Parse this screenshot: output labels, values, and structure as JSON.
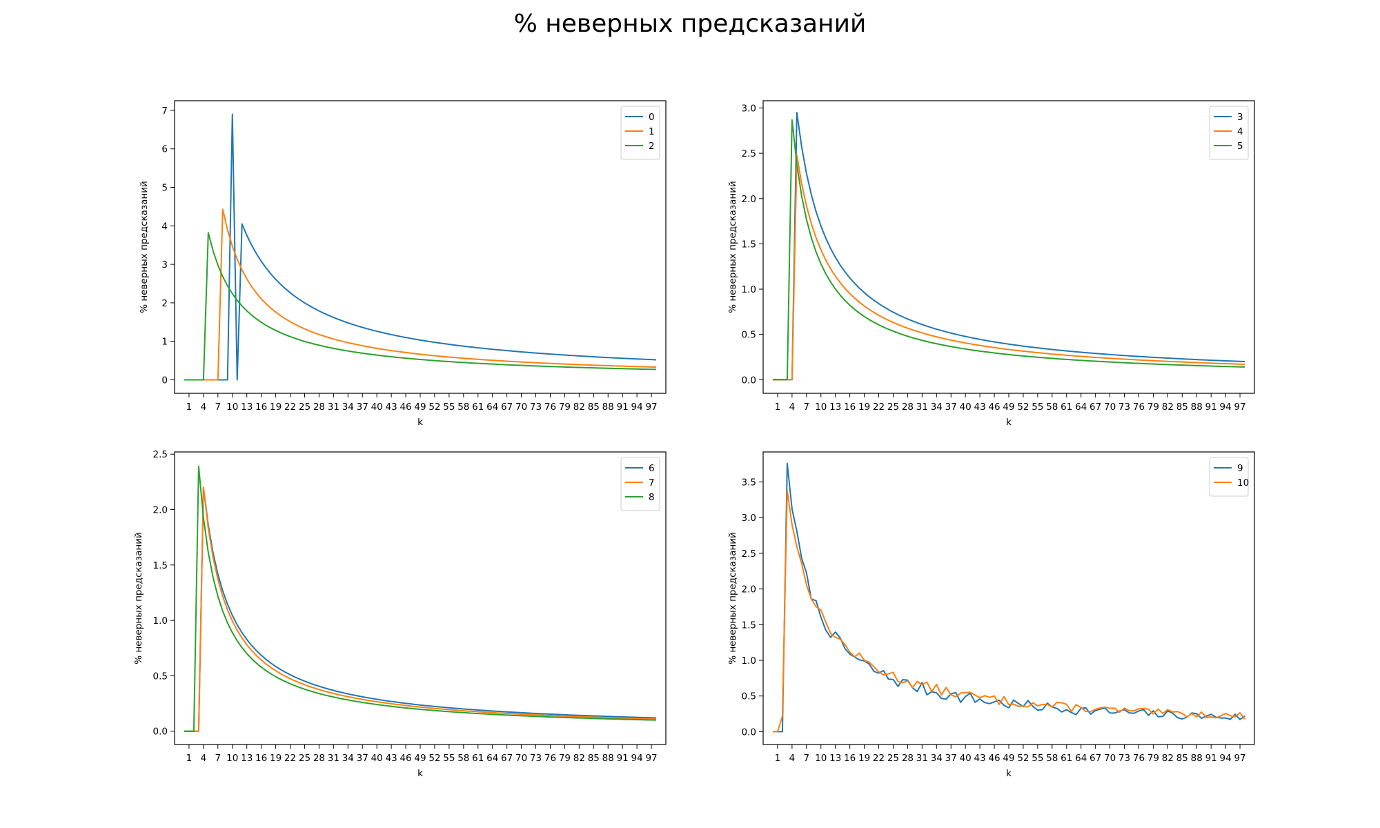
{
  "figure": {
    "suptitle": "% неверных предсказаний"
  },
  "chart_data": [
    {
      "type": "line",
      "xlabel": "k",
      "ylabel": "% неверных предсказаний",
      "xlim": [
        -2,
        100
      ],
      "ylim": [
        -0.35,
        7.25
      ],
      "yticks": [
        0,
        1,
        2,
        3,
        4,
        5,
        6,
        7
      ],
      "ytick_labels": [
        "0",
        "1",
        "2",
        "3",
        "4",
        "5",
        "6",
        "7"
      ],
      "xticks": [
        1,
        4,
        7,
        10,
        13,
        16,
        19,
        22,
        25,
        28,
        31,
        34,
        37,
        40,
        43,
        46,
        49,
        52,
        55,
        58,
        61,
        64,
        67,
        70,
        73,
        76,
        79,
        82,
        85,
        88,
        91,
        94,
        97
      ],
      "legend_position": "upper-right",
      "grid": false,
      "series": [
        {
          "name": "0",
          "color": "#1f77b4",
          "model": {
            "zeros_until": 9,
            "peak_x": 10,
            "peak_y": 6.9,
            "drop_x": 11,
            "drop_y": 0,
            "start": 12,
            "start_y": 4.05,
            "end_y": 0.52
          }
        },
        {
          "name": "1",
          "color": "#ff7f0e",
          "model": {
            "zeros_until": 7,
            "peak_x": 8,
            "peak_y": 4.43,
            "end_y": 0.33
          }
        },
        {
          "name": "2",
          "color": "#2ca02c",
          "model": {
            "zeros_until": 4,
            "peak_x": 5,
            "peak_y": 3.82,
            "end_y": 0.27
          }
        }
      ]
    },
    {
      "type": "line",
      "xlabel": "k",
      "ylabel": "% неверных предсказаний",
      "xlim": [
        -2,
        100
      ],
      "ylim": [
        -0.15,
        3.08
      ],
      "yticks": [
        0,
        0.5,
        1.0,
        1.5,
        2.0,
        2.5,
        3.0
      ],
      "ytick_labels": [
        "0.0",
        "0.5",
        "1.0",
        "1.5",
        "2.0",
        "2.5",
        "3.0"
      ],
      "xticks": [
        1,
        4,
        7,
        10,
        13,
        16,
        19,
        22,
        25,
        28,
        31,
        34,
        37,
        40,
        43,
        46,
        49,
        52,
        55,
        58,
        61,
        64,
        67,
        70,
        73,
        76,
        79,
        82,
        85,
        88,
        91,
        94,
        97
      ],
      "legend_position": "upper-right",
      "grid": false,
      "series": [
        {
          "name": "3",
          "color": "#1f77b4",
          "model": {
            "zeros_until": 4,
            "peak_x": 5,
            "peak_y": 2.95,
            "end_y": 0.2
          }
        },
        {
          "name": "4",
          "color": "#ff7f0e",
          "model": {
            "zeros_until": 4,
            "peak_x": 5,
            "peak_y": 2.48,
            "end_y": 0.17
          }
        },
        {
          "name": "5",
          "color": "#2ca02c",
          "model": {
            "zeros_until": 3,
            "peak_x": 4,
            "peak_y": 2.87,
            "end_y": 0.14
          }
        }
      ]
    },
    {
      "type": "line",
      "xlabel": "k",
      "ylabel": "% неверных предсказаний",
      "xlim": [
        -2,
        100
      ],
      "ylim": [
        -0.12,
        2.52
      ],
      "yticks": [
        0,
        0.5,
        1.0,
        1.5,
        2.0,
        2.5
      ],
      "ytick_labels": [
        "0.0",
        "0.5",
        "1.0",
        "1.5",
        "2.0",
        "2.5"
      ],
      "xticks": [
        1,
        4,
        7,
        10,
        13,
        16,
        19,
        22,
        25,
        28,
        31,
        34,
        37,
        40,
        43,
        46,
        49,
        52,
        55,
        58,
        61,
        64,
        67,
        70,
        73,
        76,
        79,
        82,
        85,
        88,
        91,
        94,
        97
      ],
      "legend_position": "upper-right",
      "grid": false,
      "series": [
        {
          "name": "6",
          "color": "#1f77b4",
          "model": {
            "zeros_until": 3,
            "peak_x": 4,
            "peak_y": 2.2,
            "end_y": 0.12
          }
        },
        {
          "name": "7",
          "color": "#ff7f0e",
          "model": {
            "zeros_until": 3,
            "peak_x": 4,
            "peak_y": 2.2,
            "end_y": 0.11
          }
        },
        {
          "name": "8",
          "color": "#2ca02c",
          "model": {
            "zeros_until": 2,
            "peak_x": 3,
            "peak_y": 2.39,
            "end_y": 0.1
          }
        }
      ]
    },
    {
      "type": "line",
      "xlabel": "k",
      "ylabel": "% неверных предсказаний",
      "xlim": [
        -2,
        100
      ],
      "ylim": [
        -0.18,
        3.92
      ],
      "yticks": [
        0,
        0.5,
        1.0,
        1.5,
        2.0,
        2.5,
        3.0,
        3.5
      ],
      "ytick_labels": [
        "0.0",
        "0.5",
        "1.0",
        "1.5",
        "2.0",
        "2.5",
        "3.0",
        "3.5"
      ],
      "xticks": [
        1,
        4,
        7,
        10,
        13,
        16,
        19,
        22,
        25,
        28,
        31,
        34,
        37,
        40,
        43,
        46,
        49,
        52,
        55,
        58,
        61,
        64,
        67,
        70,
        73,
        76,
        79,
        82,
        85,
        88,
        91,
        94,
        97
      ],
      "legend_position": "upper-right",
      "grid": false,
      "series": [
        {
          "name": "9",
          "color": "#1f77b4",
          "model": {
            "zeros_until": 2,
            "peak_x": 3,
            "peak_y": 3.76,
            "end_y": 0.2,
            "noise": 0.09,
            "seed": 7
          }
        },
        {
          "name": "10",
          "color": "#ff7f0e",
          "model": {
            "zeros_until": 1,
            "pre": [
              [
                2,
                0.22
              ]
            ],
            "peak_x": 3,
            "peak_y": 3.38,
            "end_y": 0.22,
            "noise": 0.07,
            "seed": 13
          }
        }
      ]
    }
  ]
}
